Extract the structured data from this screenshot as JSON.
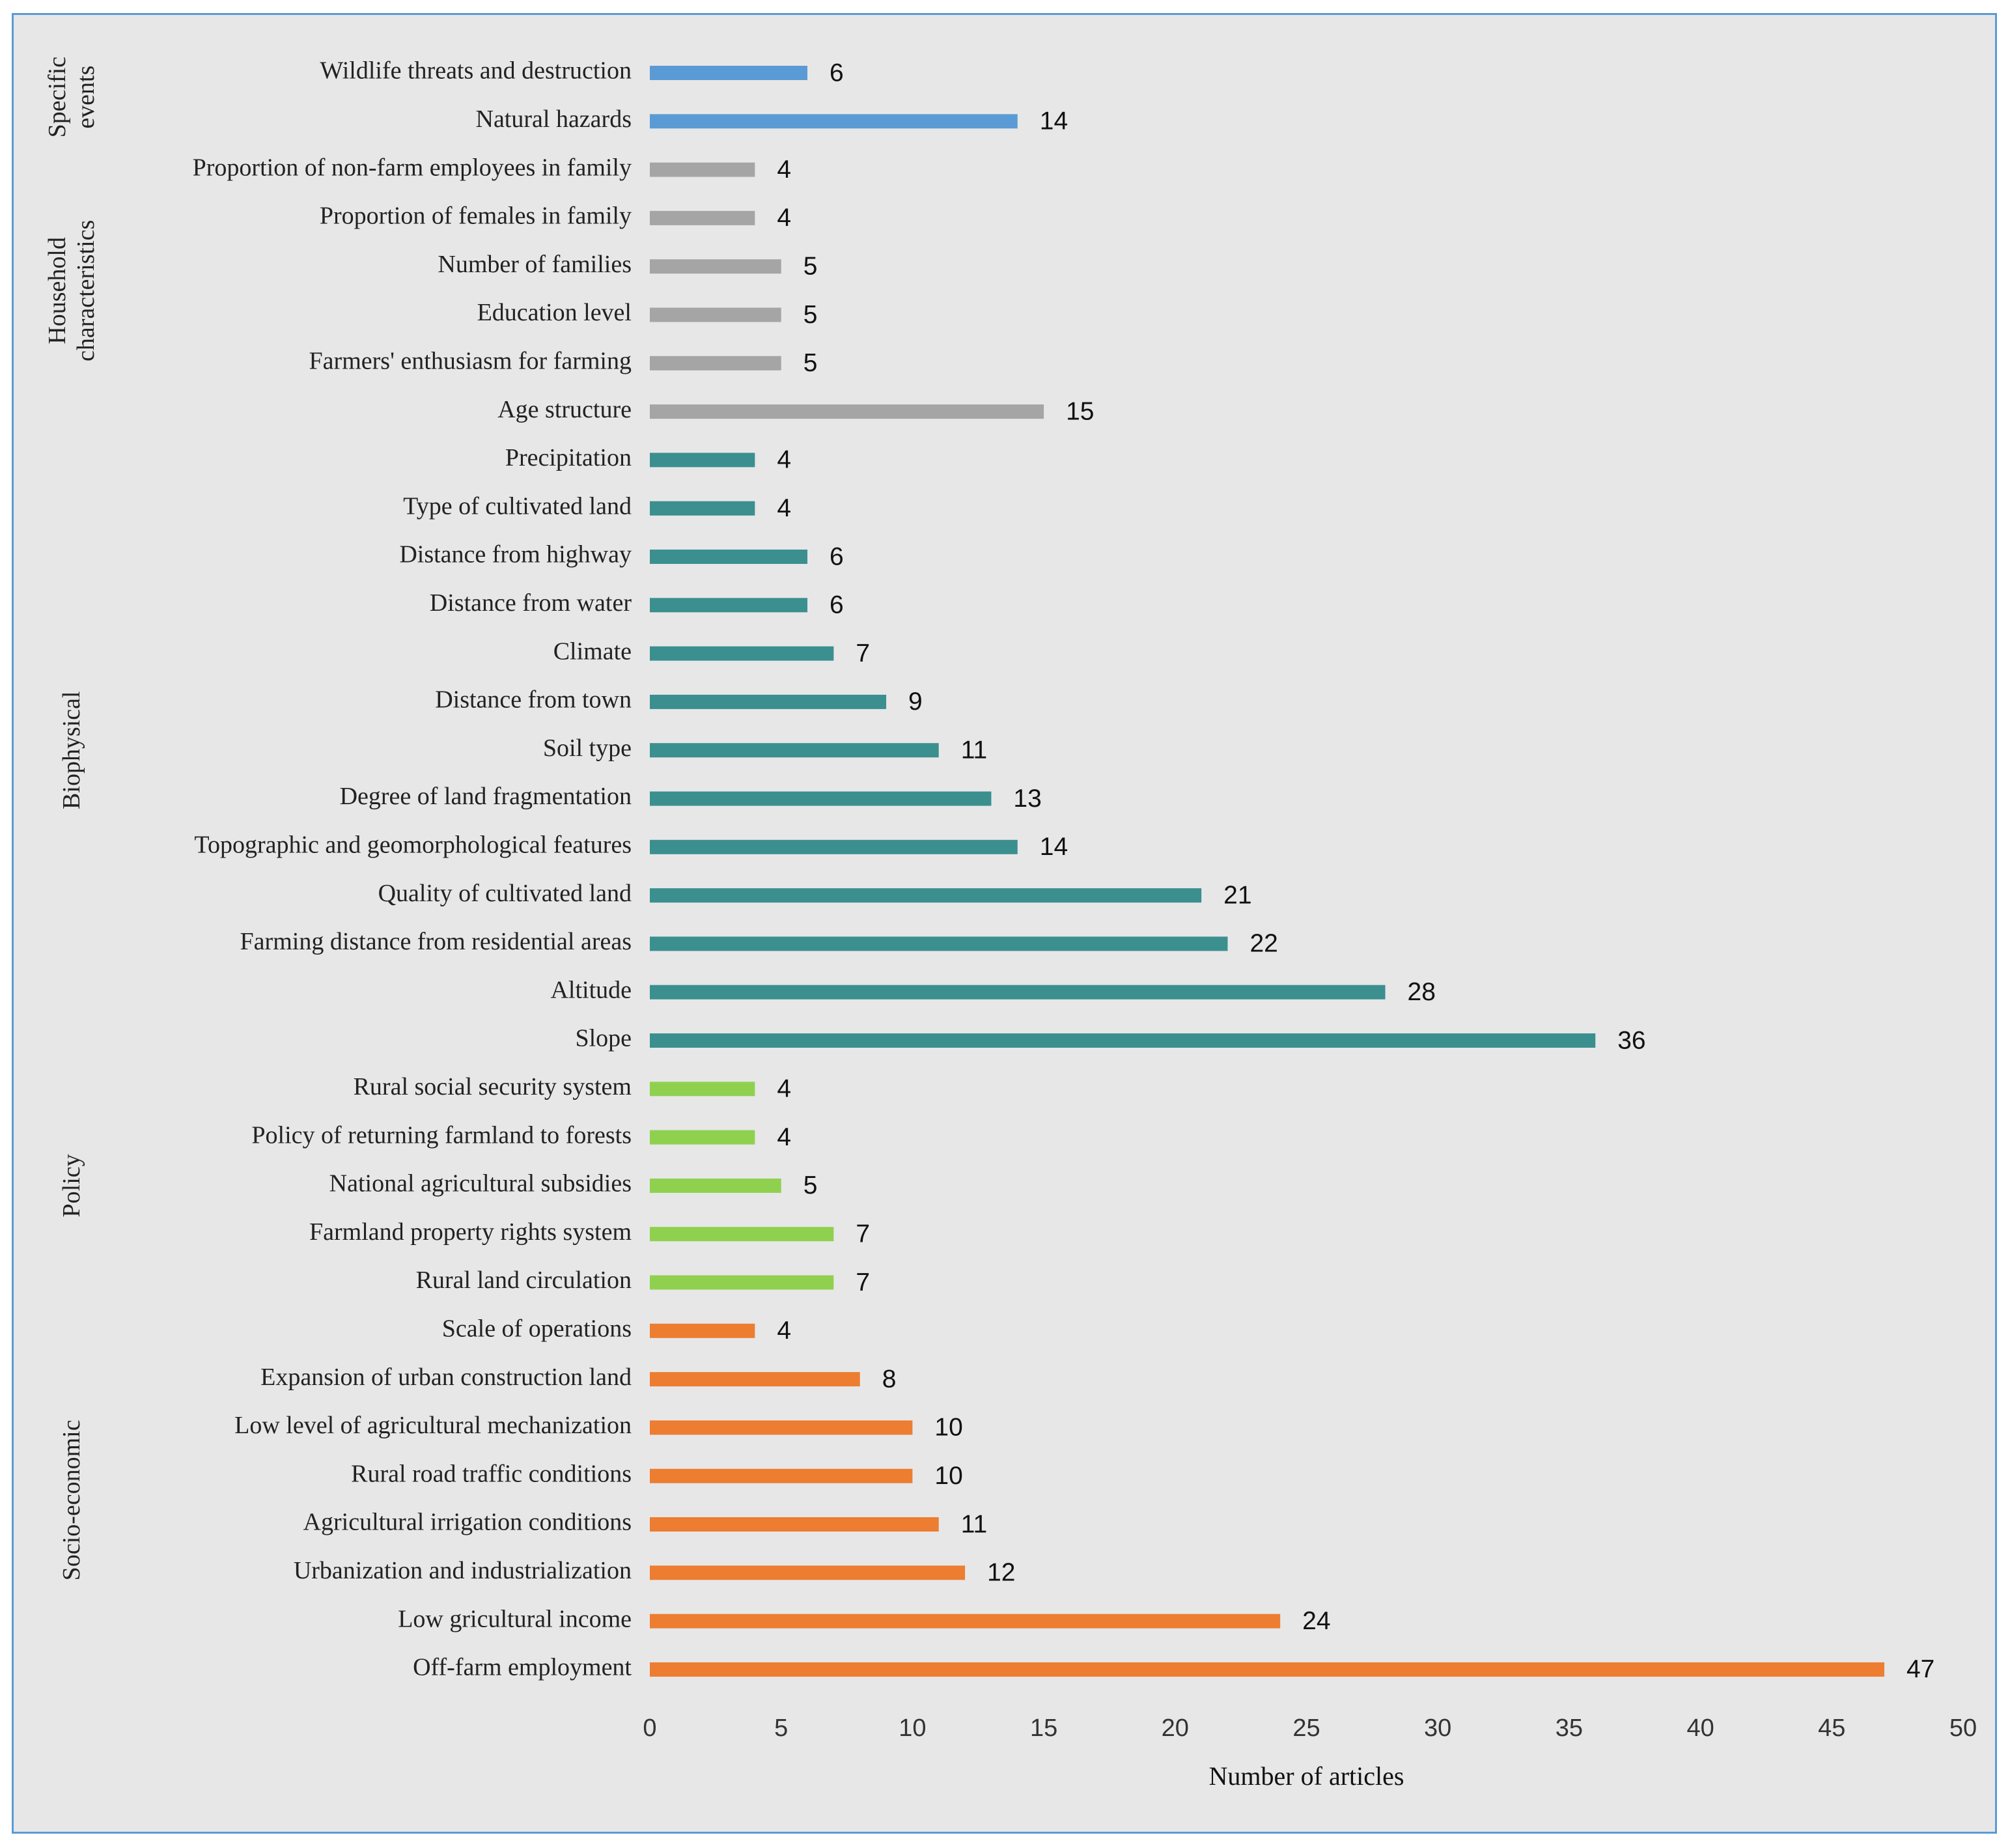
{
  "chart_data": {
    "type": "bar",
    "orientation": "horizontal",
    "title": "",
    "xlabel": "Number of articles",
    "ylabel": "",
    "xlim": [
      0,
      50
    ],
    "xticks": [
      0,
      5,
      10,
      15,
      20,
      25,
      30,
      35,
      40,
      45,
      50
    ],
    "grid": false,
    "legend": "none",
    "groups": [
      {
        "name": "Specific events",
        "name_lines": [
          "Specific",
          "events"
        ],
        "color": "#5b9bd5",
        "categories": [
          "Wildlife threats and destruction",
          "Natural hazards"
        ],
        "values": [
          6,
          14
        ]
      },
      {
        "name": "Household characteristics",
        "name_lines": [
          "Household",
          "characteristics"
        ],
        "color": "#a5a5a5",
        "categories": [
          "Proportion of non-farm employees in family",
          "Proportion of females in family",
          "Number of families",
          "Education level",
          "Farmers' enthusiasm for farming",
          "Age structure"
        ],
        "values": [
          4,
          4,
          5,
          5,
          5,
          15
        ]
      },
      {
        "name": "Biophysical",
        "name_lines": [
          "Biophysical"
        ],
        "color": "#3b8f8f",
        "categories": [
          "Precipitation",
          "Type of cultivated land",
          "Distance from highway",
          "Distance from water",
          "Climate",
          "Distance from town",
          "Soil type",
          "Degree of land fragmentation",
          "Topographic and geomorphological features",
          "Quality of cultivated land",
          "Farming distance from residential areas",
          "Altitude",
          "Slope"
        ],
        "values": [
          4,
          4,
          6,
          6,
          7,
          9,
          11,
          13,
          14,
          21,
          22,
          28,
          36
        ]
      },
      {
        "name": "Policy",
        "name_lines": [
          "Policy"
        ],
        "color": "#8fd14f",
        "categories": [
          "Rural social security system",
          "Policy of returning farmland to forests",
          "National agricultural subsidies",
          "Farmland property rights system",
          "Rural land circulation"
        ],
        "values": [
          4,
          4,
          5,
          7,
          7
        ]
      },
      {
        "name": "Socio-economic",
        "name_lines": [
          "Socio-economic"
        ],
        "color": "#ed7d31",
        "categories": [
          "Scale of operations",
          "Expansion of urban construction land",
          "Low level of agricultural mechanization",
          "Rural road traffic conditions",
          "Agricultural irrigation conditions",
          "Urbanization and industrialization",
          "Low gricultural income",
          "Off-farm employment"
        ],
        "values": [
          4,
          8,
          10,
          10,
          11,
          12,
          24,
          47
        ]
      }
    ]
  }
}
